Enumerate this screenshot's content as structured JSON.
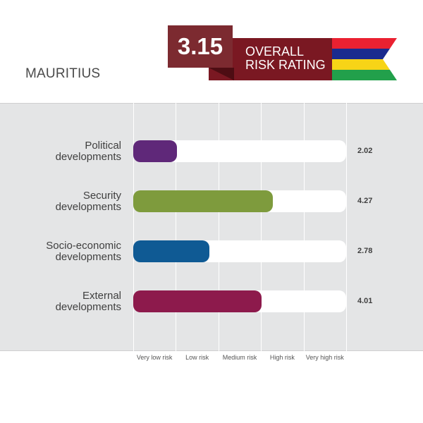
{
  "header": {
    "country": "MAURITIUS",
    "overall_score": "3.15",
    "overall_label_line1": "OVERALL",
    "overall_label_line2": "RISK RATING",
    "flag_colors": [
      "#ea2131",
      "#1a2b8f",
      "#f7d417",
      "#22a04b"
    ]
  },
  "chart_data": {
    "type": "bar",
    "orientation": "horizontal",
    "title": "",
    "xlabel": "",
    "ylabel": "",
    "xlim": [
      1,
      6
    ],
    "grid": true,
    "categories": [
      "Political developments",
      "Security developments",
      "Socio-economic developments",
      "External developments"
    ],
    "category_lines": [
      [
        "Political",
        "developments"
      ],
      [
        "Security",
        "developments"
      ],
      [
        "Socio-economic",
        "developments"
      ],
      [
        "External",
        "developments"
      ]
    ],
    "values": [
      2.02,
      4.27,
      2.78,
      4.01
    ],
    "value_labels": [
      "2.02",
      "4.27",
      "2.78",
      "4.01"
    ],
    "colors": [
      "#5f2879",
      "#7e9b3d",
      "#0f5a94",
      "#8d1a4c"
    ],
    "tick_labels": [
      "Very low risk",
      "Low risk",
      "Medium risk",
      "High risk",
      "Very high risk"
    ]
  }
}
